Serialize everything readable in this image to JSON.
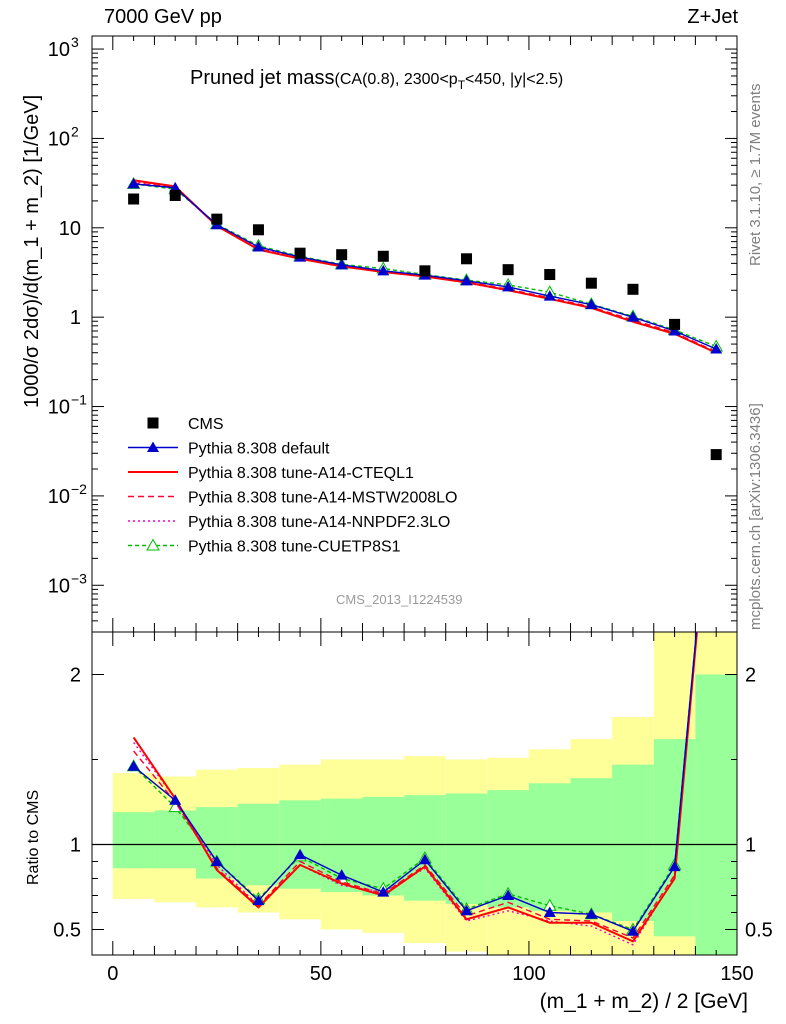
{
  "header": {
    "energy": "7000 GeV pp",
    "process": "Z+Jet"
  },
  "side_labels": {
    "rivet": "Rivet 3.1.10, ≥ 1.7M events",
    "mcplots": "mcplots.cern.ch [arXiv:1306.3436]"
  },
  "chart_data": [
    {
      "type": "scatter",
      "panel": "main",
      "title_main": "Pruned jet mass",
      "title_sub_1": "(CA(0.8), 2300<p",
      "title_sub_2": "T",
      "title_sub_3": "<450, |y|<2.5)",
      "ylabel": "1000/σ 2dσ)/d(m_1 + m_2) [1/GeV]",
      "yscale": "log",
      "ylim": [
        0.0003,
        1400
      ],
      "xlim": [
        -5,
        150
      ],
      "yticks": [
        {
          "v": 1000,
          "base": "10",
          "exp": "3"
        },
        {
          "v": 100,
          "base": "10",
          "exp": "2"
        },
        {
          "v": 10,
          "base": "10",
          "exp": ""
        },
        {
          "v": 1,
          "base": "1",
          "exp": ""
        },
        {
          "v": 0.1,
          "base": "10",
          "exp": "−1"
        },
        {
          "v": 0.01,
          "base": "10",
          "exp": "−2"
        },
        {
          "v": 0.001,
          "base": "10",
          "exp": "−3"
        }
      ],
      "analysis_id": "CMS_2013_I1224539",
      "x": [
        5,
        15,
        25,
        35,
        45,
        55,
        65,
        75,
        85,
        95,
        105,
        115,
        125,
        135,
        145
      ],
      "series": [
        {
          "name": "CMS",
          "color": "#000000",
          "marker": "square",
          "values": [
            21,
            23,
            12.5,
            9.5,
            5.2,
            5.0,
            4.8,
            3.3,
            4.5,
            3.4,
            3.0,
            2.4,
            2.05,
            0.83,
            0.029
          ]
        },
        {
          "name": "Pythia 8.308 default",
          "color": "#0000cc",
          "marker": "triangle",
          "dash": "",
          "values": [
            31,
            28,
            10.8,
            6.1,
            4.7,
            3.85,
            3.3,
            2.95,
            2.55,
            2.18,
            1.72,
            1.38,
            1.0,
            0.7,
            0.44
          ]
        },
        {
          "name": "Pythia 8.308 tune-A14-CTEQL1",
          "color": "#ff0000",
          "marker": "none",
          "dash": "",
          "values": [
            34,
            29,
            10.5,
            5.7,
            4.5,
            3.7,
            3.2,
            2.85,
            2.45,
            2.0,
            1.6,
            1.27,
            0.89,
            0.65,
            0.4
          ]
        },
        {
          "name": "Pythia 8.308 tune-A14-MSTW2008LO",
          "color": "#ff0033",
          "marker": "none",
          "dash": "6,4",
          "values": [
            32,
            28,
            10.6,
            5.8,
            4.55,
            3.75,
            3.22,
            2.9,
            2.5,
            2.05,
            1.65,
            1.3,
            0.93,
            0.67,
            0.41
          ]
        },
        {
          "name": "Pythia 8.308 tune-A14-NNPDF2.3LO",
          "color": "#ee00cc",
          "marker": "none",
          "dash": "2,3",
          "values": [
            33,
            28.5,
            10.7,
            5.9,
            4.6,
            3.7,
            3.3,
            2.88,
            2.42,
            1.98,
            1.62,
            1.28,
            0.88,
            0.66,
            0.4
          ]
        },
        {
          "name": "Pythia 8.308 tune-CUETP8S1",
          "color": "#00bb00",
          "marker": "open-triangle",
          "dash": "4,3",
          "values": [
            31,
            27,
            11,
            6.3,
            4.8,
            3.9,
            3.5,
            3.0,
            2.6,
            2.3,
            1.9,
            1.4,
            1.02,
            0.72,
            0.47
          ]
        }
      ]
    },
    {
      "type": "line",
      "panel": "ratio",
      "ylabel": "Ratio to CMS",
      "ylim": [
        0.35,
        2.25
      ],
      "xlim": [
        -5,
        150
      ],
      "yticks": [
        "0.5",
        "1",
        "2"
      ],
      "xticks": [
        "0",
        "50",
        "100",
        "150"
      ],
      "xlabel": "(m_1 + m_2) / 2 [GeV]",
      "bin_edges": [
        0,
        10,
        20,
        30,
        40,
        50,
        60,
        70,
        80,
        90,
        100,
        110,
        120,
        130,
        140,
        150
      ],
      "band_yellow": {
        "color": "#ffff99",
        "lo": [
          0.68,
          0.66,
          0.63,
          0.6,
          0.56,
          0.5,
          0.48,
          0.42,
          0.37,
          0.33,
          0.32,
          0.31,
          0.3,
          0.25,
          0.2
        ],
        "hi": [
          1.42,
          1.4,
          1.44,
          1.45,
          1.47,
          1.5,
          1.5,
          1.52,
          1.5,
          1.51,
          1.56,
          1.62,
          1.75,
          2.3,
          2.3
        ]
      },
      "band_green": {
        "color": "#99ff99",
        "lo": [
          0.86,
          0.86,
          0.8,
          0.76,
          0.74,
          0.72,
          0.7,
          0.67,
          0.65,
          0.63,
          0.61,
          0.6,
          0.55,
          0.46,
          0.3
        ],
        "hi": [
          1.19,
          1.2,
          1.22,
          1.24,
          1.26,
          1.27,
          1.28,
          1.29,
          1.3,
          1.32,
          1.36,
          1.39,
          1.47,
          1.62,
          2.0
        ]
      },
      "reference_line": 1,
      "series": [
        {
          "name": "Pythia 8.308 default",
          "values": [
            1.46,
            1.26,
            0.9,
            0.67,
            0.94,
            0.82,
            0.72,
            0.91,
            0.61,
            0.7,
            0.6,
            0.59,
            0.49,
            0.87,
            3.5
          ]
        },
        {
          "name": "Pythia 8.308 tune-A14-CTEQL1",
          "values": [
            1.63,
            1.27,
            0.85,
            0.63,
            0.88,
            0.77,
            0.7,
            0.87,
            0.56,
            0.63,
            0.54,
            0.54,
            0.43,
            0.8,
            3.5
          ]
        },
        {
          "name": "Pythia 8.308 tune-A14-MSTW2008LO",
          "values": [
            1.55,
            1.25,
            0.86,
            0.64,
            0.9,
            0.78,
            0.71,
            0.88,
            0.58,
            0.66,
            0.56,
            0.55,
            0.45,
            0.82,
            3.5
          ]
        },
        {
          "name": "Pythia 8.308 tune-A14-NNPDF2.3LO",
          "values": [
            1.6,
            1.27,
            0.88,
            0.64,
            0.88,
            0.76,
            0.72,
            0.86,
            0.55,
            0.61,
            0.55,
            0.52,
            0.41,
            0.81,
            3.5
          ]
        },
        {
          "name": "Pythia 8.308 tune-CUETP8S1",
          "values": [
            1.46,
            1.22,
            0.9,
            0.68,
            0.93,
            0.8,
            0.74,
            0.92,
            0.62,
            0.71,
            0.64,
            0.59,
            0.5,
            0.88,
            3.5
          ]
        }
      ]
    }
  ]
}
